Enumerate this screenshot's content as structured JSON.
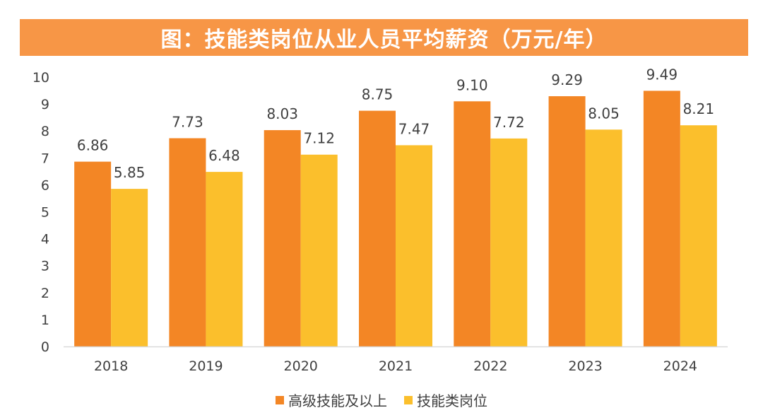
{
  "colors": {
    "title_bg": "#F79646",
    "series1": "#F38625",
    "series2": "#FBBF2C",
    "axis": "#D9D9D9",
    "text": "#404040"
  },
  "chart_data": {
    "type": "bar",
    "title": "图：技能类岗位从业人员平均薪资（万元/年）",
    "xlabel": "",
    "ylabel": "",
    "ylim": [
      0,
      10
    ],
    "yticks": [
      0,
      1,
      2,
      3,
      4,
      5,
      6,
      7,
      8,
      9,
      10
    ],
    "categories": [
      "2018",
      "2019",
      "2020",
      "2021",
      "2022",
      "2023",
      "2024"
    ],
    "series": [
      {
        "name": "高级技能及以上",
        "values": [
          6.86,
          7.73,
          8.03,
          8.75,
          9.1,
          9.29,
          9.49
        ],
        "labels": [
          "6.86",
          "7.73",
          "8.03",
          "8.75",
          "9.10",
          "9.29",
          "9.49"
        ]
      },
      {
        "name": "技能类岗位",
        "values": [
          5.85,
          6.48,
          7.12,
          7.47,
          7.72,
          8.05,
          8.21
        ],
        "labels": [
          "5.85",
          "6.48",
          "7.12",
          "7.47",
          "7.72",
          "8.05",
          "8.21"
        ]
      }
    ],
    "legend_position": "bottom"
  }
}
